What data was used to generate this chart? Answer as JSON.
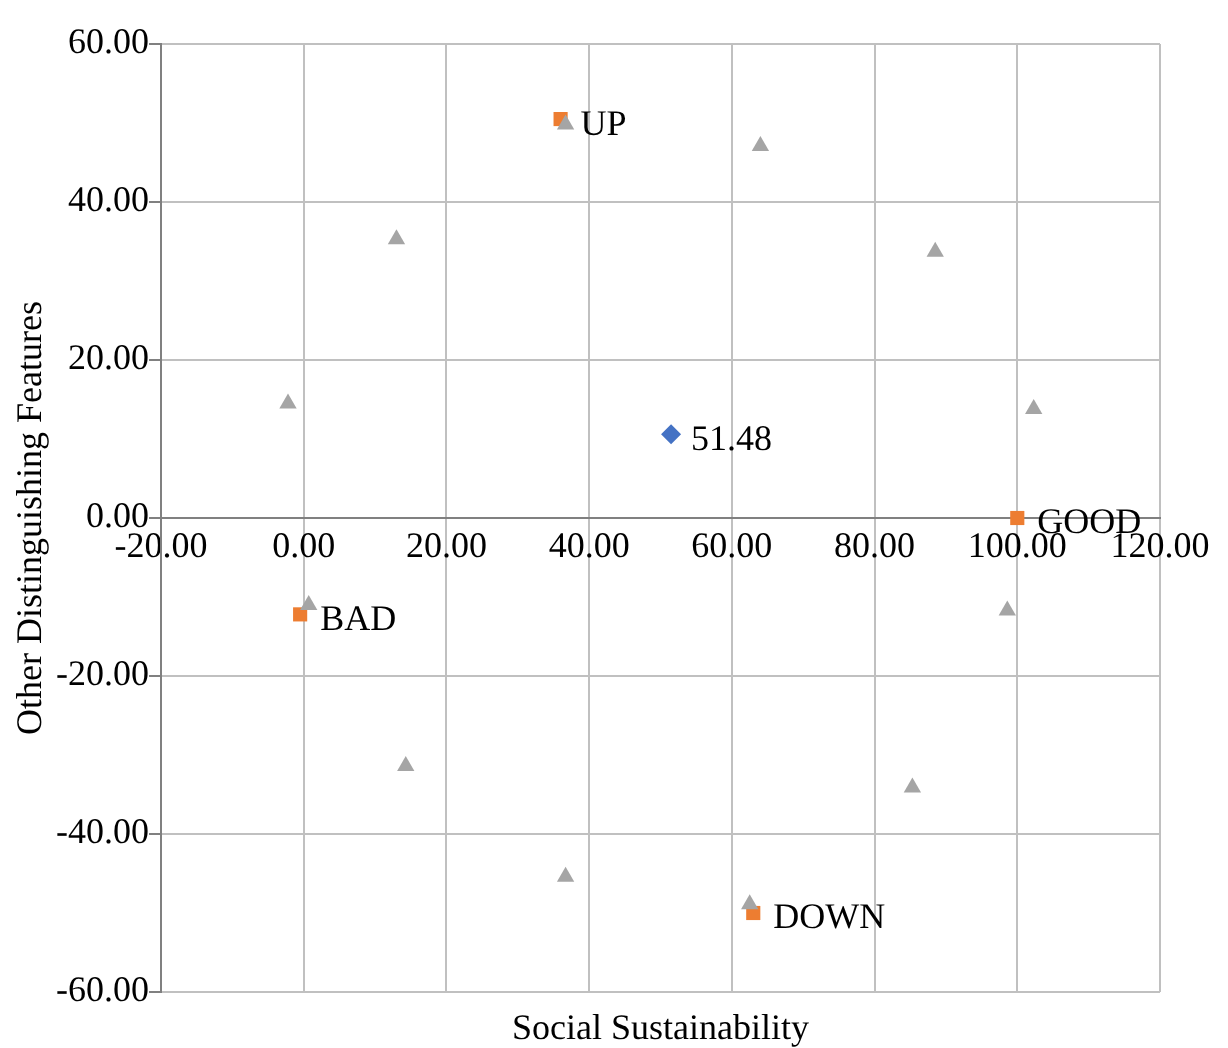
{
  "chart_data": {
    "type": "scatter",
    "xlabel": "Social Sustainability",
    "ylabel": "Other Distinguishing Features",
    "xlim": [
      -20,
      120
    ],
    "xticks": [
      {
        "value": -20,
        "label": "-20.00"
      },
      {
        "value": 0,
        "label": "0.00"
      },
      {
        "value": 20,
        "label": "20.00"
      },
      {
        "value": 40,
        "label": "40.00"
      },
      {
        "value": 60,
        "label": "60.00"
      },
      {
        "value": 80,
        "label": "80.00"
      },
      {
        "value": 100,
        "label": "100.00"
      },
      {
        "value": 120,
        "label": "120.00"
      }
    ],
    "ylim": [
      -60,
      60
    ],
    "yticks": [
      {
        "value": -60,
        "label": "-60.00"
      },
      {
        "value": -40,
        "label": "-40.00"
      },
      {
        "value": -20,
        "label": "-20.00"
      },
      {
        "value": 0,
        "label": "0.00"
      },
      {
        "value": 20,
        "label": "20.00"
      },
      {
        "value": 40,
        "label": "40.00"
      },
      {
        "value": 60,
        "label": "60.00"
      }
    ],
    "grid": true,
    "legend": false,
    "series": [
      {
        "color": "#a5a5a5",
        "marker": "triangle",
        "x": [
          -2.2,
          13,
          36.7,
          64,
          88.5,
          102.3,
          0.7,
          14.3,
          36.7,
          62.5,
          85.3,
          98.6
        ],
        "values": [
          14.5,
          35.3,
          49.8,
          47.1,
          33.7,
          13.8,
          -11,
          -31.4,
          -45.4,
          -48.9,
          -34.1,
          -11.7
        ]
      },
      {
        "color": "#ed7d31",
        "marker": "square",
        "x": [
          36,
          100,
          -0.5,
          63
        ],
        "values": [
          50.5,
          0,
          -12.2,
          -50
        ],
        "value_labels": [
          "UP",
          "GOOD",
          "BAD",
          "DOWN"
        ]
      },
      {
        "color": "#4472c4",
        "marker": "diamond",
        "x": [
          51.48
        ],
        "values": [
          10.6
        ]
      }
    ],
    "annotations": [
      {
        "text": "51.48",
        "x": 51.48,
        "y": 10.6
      }
    ]
  }
}
